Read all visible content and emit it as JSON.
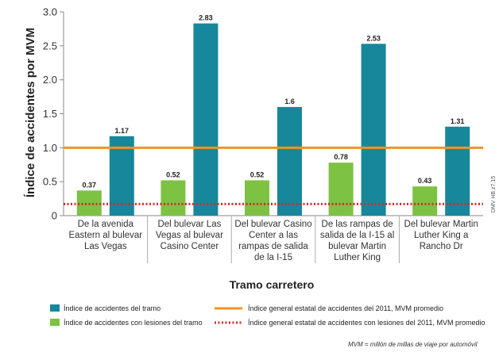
{
  "chart_data": {
    "type": "bar",
    "ylabel": "Índice de accidentes por MVM",
    "xlabel": "Tramo carretero",
    "ylim": [
      0,
      3.0
    ],
    "yticks": [
      "0",
      "0.5",
      "1.0",
      "1.5",
      "2.0",
      "2.5",
      "3.0"
    ],
    "ytick_values": [
      0,
      0.5,
      1.0,
      1.5,
      2.0,
      2.5,
      3.0
    ],
    "categories": [
      [
        "De la avenida",
        "Eastern al bulevar",
        "Las Vegas"
      ],
      [
        "Del bulevar Las",
        "Vegas al bulevar",
        "Casino Center"
      ],
      [
        "Del bulevar Casino",
        "Center a las",
        "rampas de salida",
        "de la I-15"
      ],
      [
        "De las rampas de",
        "salida de la I-15 al",
        "bulevar Martin",
        "Luther King"
      ],
      [
        "Del bulevar Martin",
        "Luther King a",
        "Rancho Dr"
      ]
    ],
    "series": [
      {
        "name": "Índice de accidentes con lesiones del tramo",
        "color": "#7dc243",
        "values": [
          0.37,
          0.52,
          0.52,
          0.78,
          0.43
        ],
        "labels": [
          "0.37",
          "0.52",
          "0.52",
          "0.78",
          "0.43"
        ]
      },
      {
        "name": "Índice de accidentes del tramo",
        "color": "#17879c",
        "values": [
          1.17,
          2.83,
          1.6,
          2.53,
          1.31
        ],
        "labels": [
          "1.17",
          "2.83",
          "1.6",
          "2.53",
          "1.31"
        ]
      }
    ],
    "reference_lines": [
      {
        "name": "Índice general estatal de accidentes del 2011, MVM promedio",
        "value": 1.0,
        "color": "#f7941d",
        "style": "solid"
      },
      {
        "name": "Índice general estatal de accidentes con lesiones del 2011, MVM promedio",
        "value": 0.17,
        "color": "#d7282f",
        "style": "dotted"
      }
    ],
    "grid": false,
    "legend_position": "bottom",
    "side_note": "DMV HB.z7.15",
    "footnote": "MVM = millón de millas de viaje por automóvil"
  }
}
